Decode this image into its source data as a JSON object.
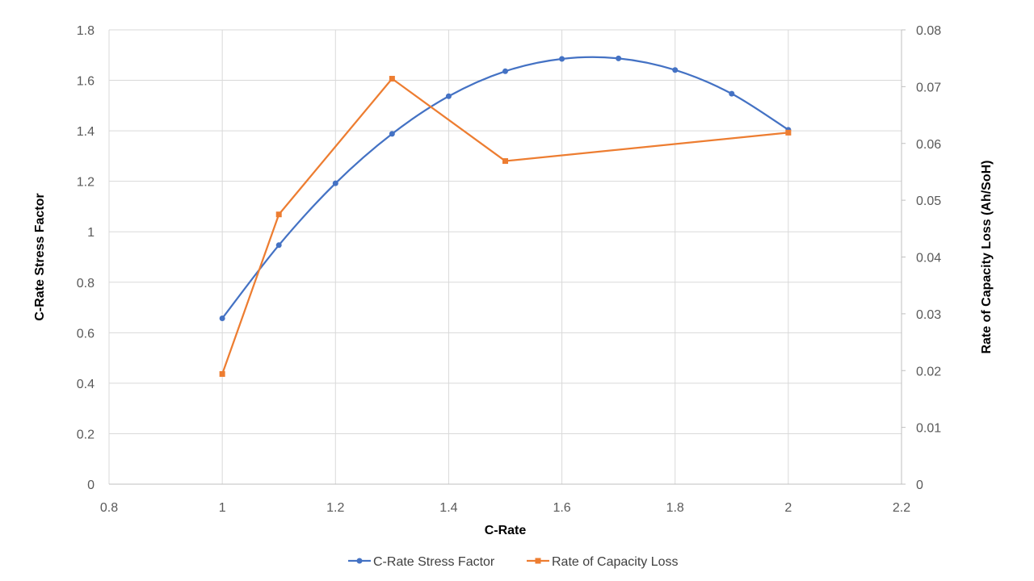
{
  "chart_data": {
    "type": "scatter",
    "xlabel": "C-Rate",
    "ylabel": "C-Rate Stress Factor",
    "y2label": "Rate of Capacity Loss (Ah/SoH)",
    "xlim": [
      0.8,
      2.2
    ],
    "xticks": [
      0.8,
      1,
      1.2,
      1.4,
      1.6,
      1.8,
      2,
      2.2
    ],
    "xtick_labels": [
      "0.8",
      "1",
      "1.2",
      "1.4",
      "1.6",
      "1.8",
      "2",
      "2.2"
    ],
    "ylim": [
      0,
      1.8
    ],
    "yticks": [
      0,
      0.2,
      0.4,
      0.6,
      0.8,
      1,
      1.2,
      1.4,
      1.6,
      1.8
    ],
    "ytick_labels": [
      "0",
      "0.2",
      "0.4",
      "0.6",
      "0.8",
      "1",
      "1.2",
      "1.4",
      "1.6",
      "1.8"
    ],
    "y2lim": [
      0,
      0.08
    ],
    "y2ticks": [
      0,
      0.01,
      0.02,
      0.03,
      0.04,
      0.05,
      0.06,
      0.07,
      0.08
    ],
    "y2tick_labels": [
      "0",
      "0.01",
      "0.02",
      "0.03",
      "0.04",
      "0.05",
      "0.06",
      "0.07",
      "0.08"
    ],
    "grid": true,
    "legend_position": "bottom",
    "series": [
      {
        "name": "C-Rate Stress Factor",
        "axis": "left",
        "color": "#4472C4",
        "marker": "circle",
        "smooth": true,
        "x": [
          1.0,
          1.1,
          1.2,
          1.3,
          1.4,
          1.5,
          1.6,
          1.7,
          1.8,
          1.9,
          2.0
        ],
        "y": [
          0.657,
          0.947,
          1.192,
          1.388,
          1.537,
          1.636,
          1.685,
          1.687,
          1.641,
          1.547,
          1.404
        ]
      },
      {
        "name": "Rate of Capacity Loss",
        "axis": "right",
        "color": "#ED7D31",
        "marker": "square",
        "smooth": false,
        "x": [
          1.0,
          1.1,
          1.3,
          1.5,
          2.0
        ],
        "y": [
          0.0194,
          0.0475,
          0.0714,
          0.0569,
          0.0619
        ]
      }
    ]
  }
}
